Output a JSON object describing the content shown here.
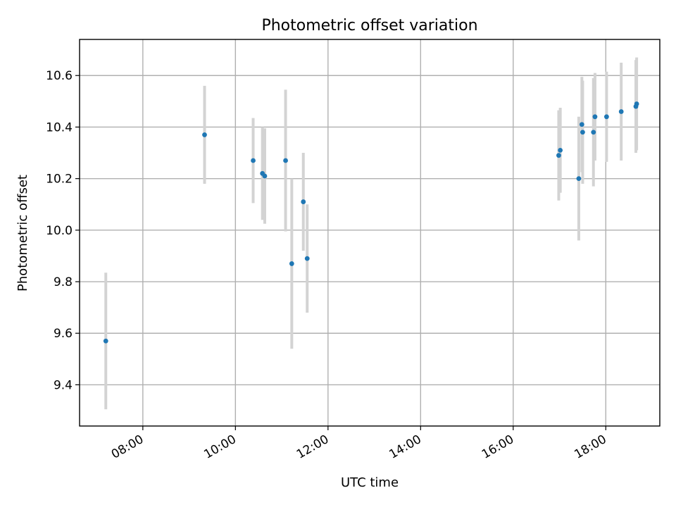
{
  "chart_data": {
    "type": "scatter",
    "title": "Photometric offset variation",
    "xlabel": "UTC time",
    "ylabel": "Photometric offset",
    "xlim": [
      "06:38",
      "19:10"
    ],
    "ylim": [
      9.24,
      10.74
    ],
    "x_ticks": [
      "08:00",
      "10:00",
      "12:00",
      "14:00",
      "16:00",
      "18:00"
    ],
    "y_ticks": [
      9.4,
      9.6,
      9.8,
      10.0,
      10.2,
      10.4,
      10.6
    ],
    "grid": true,
    "legend": "none",
    "colors": {
      "point": "#1f77b4",
      "errorbar": "#d3d3d3",
      "grid": "#b0b0b0"
    },
    "points": [
      {
        "x": "07:12",
        "y": 9.57,
        "err": 0.265
      },
      {
        "x": "09:20",
        "y": 10.37,
        "err": 0.19
      },
      {
        "x": "10:23",
        "y": 10.27,
        "err": 0.165
      },
      {
        "x": "10:35",
        "y": 10.22,
        "err": 0.18
      },
      {
        "x": "10:38",
        "y": 10.21,
        "err": 0.185
      },
      {
        "x": "11:05",
        "y": 10.27,
        "err": 0.275
      },
      {
        "x": "11:13",
        "y": 9.87,
        "err": 0.33
      },
      {
        "x": "11:28",
        "y": 10.11,
        "err": 0.19
      },
      {
        "x": "11:33",
        "y": 9.89,
        "err": 0.21
      },
      {
        "x": "16:59",
        "y": 10.29,
        "err": 0.175
      },
      {
        "x": "17:01",
        "y": 10.31,
        "err": 0.165
      },
      {
        "x": "17:25",
        "y": 10.2,
        "err": 0.24
      },
      {
        "x": "17:29",
        "y": 10.41,
        "err": 0.185
      },
      {
        "x": "17:30",
        "y": 10.38,
        "err": 0.2
      },
      {
        "x": "17:44",
        "y": 10.38,
        "err": 0.21
      },
      {
        "x": "17:46",
        "y": 10.44,
        "err": 0.17
      },
      {
        "x": "18:01",
        "y": 10.44,
        "err": 0.175
      },
      {
        "x": "18:20",
        "y": 10.46,
        "err": 0.19
      },
      {
        "x": "18:39",
        "y": 10.48,
        "err": 0.18
      },
      {
        "x": "18:40",
        "y": 10.49,
        "err": 0.18
      }
    ]
  }
}
